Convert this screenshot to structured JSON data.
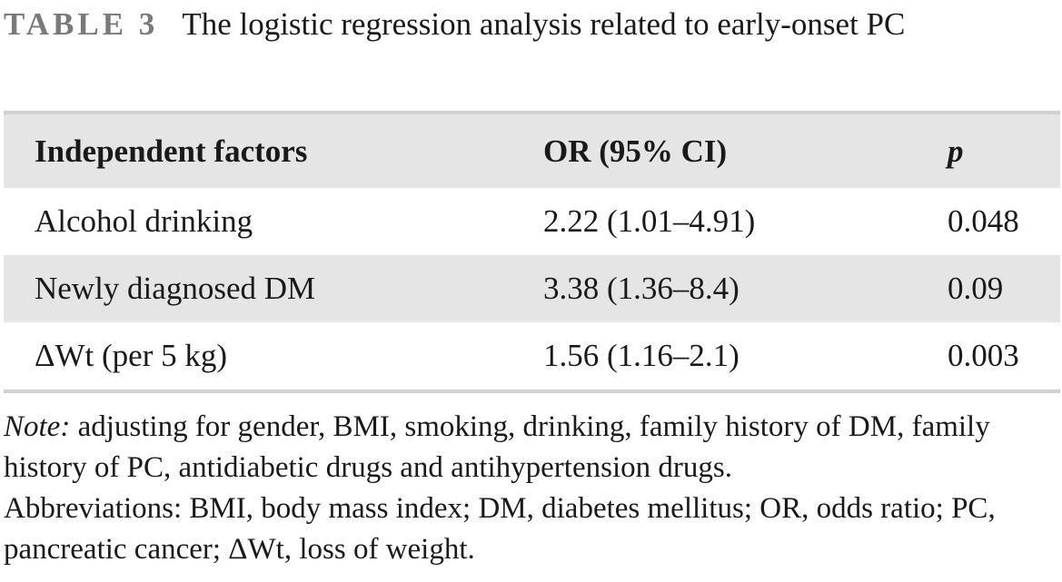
{
  "caption": {
    "label": "TABLE 3",
    "title": "The logistic regression analysis related to early-onset PC"
  },
  "table": {
    "headers": [
      "Independent factors",
      "OR (95% CI)",
      "p"
    ],
    "rows": [
      [
        "Alcohol drinking",
        "2.22 (1.01–4.91)",
        "0.048"
      ],
      [
        "Newly diagnosed DM",
        "3.38 (1.36–8.4)",
        "0.09"
      ],
      [
        "ΔWt (per 5 kg)",
        "1.56 (1.16–2.1)",
        "0.003"
      ]
    ]
  },
  "note": {
    "lead": "Note:",
    "text": " adjusting for gender, BMI, smoking, drinking, family history of DM, family history of PC, antidiabetic drugs and antihypertension drugs.",
    "abbreviations": "Abbreviations: BMI, body mass index; DM, diabetes mellitus; OR, odds ratio; PC, pancreatic cancer; ΔWt, loss of weight."
  }
}
